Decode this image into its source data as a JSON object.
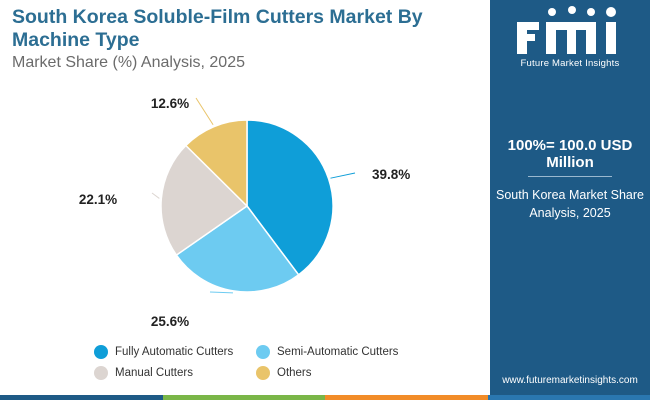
{
  "header": {
    "title": "South Korea Soluble-Film Cutters Market By Machine Type",
    "subtitle": "Market Share (%) Analysis, 2025"
  },
  "chart_data": {
    "type": "pie",
    "categories": [
      "Fully Automatic Cutters",
      "Semi-Automatic Cutters",
      "Manual Cutters",
      "Others"
    ],
    "values": [
      39.8,
      25.6,
      22.1,
      12.6
    ],
    "labels": [
      "39.8%",
      "25.6%",
      "22.1%",
      "12.6%"
    ],
    "colors": [
      "#0f9ed8",
      "#6dcbf1",
      "#dcd5d1",
      "#e9c46a"
    ],
    "start_angle_deg": 0,
    "direction": "clockwise",
    "legend_placement": "bottom"
  },
  "sidebar": {
    "logo_text": "Future Market Insights",
    "total_label": "100%= 100.0 USD Million",
    "region_label": "South Korea Market Share Analysis, 2025",
    "website": "www.futuremarketinsights.com",
    "background_color": "#1e5a86"
  },
  "bottom_bar_colors": [
    "#1e5a86",
    "#7ab648",
    "#f28c28",
    "#2a77b0"
  ]
}
